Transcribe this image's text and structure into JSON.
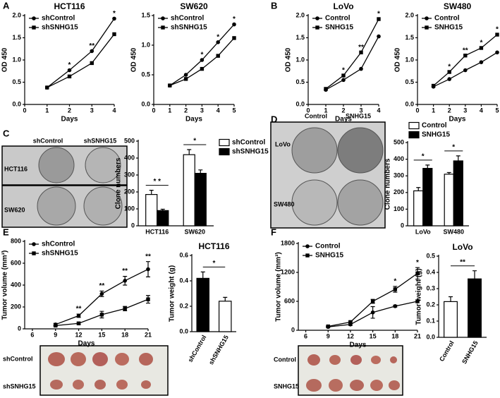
{
  "panels": [
    "A",
    "B",
    "C",
    "D",
    "E",
    "F"
  ],
  "photos": [
    {
      "columns": [
        "shControl",
        "shSNHG15"
      ],
      "rows": [
        "HCT116",
        "SW620"
      ]
    },
    {
      "columns": [
        "Control",
        "SNHG15"
      ],
      "rows": [
        "LoVo",
        "SW480"
      ]
    },
    {
      "rows": [
        "shControl",
        "shSNHG15"
      ]
    },
    {
      "rows": [
        "Control",
        "SNHG15"
      ]
    }
  ],
  "chart_data": [
    {
      "type": "line",
      "title": "HCT116",
      "xlabel": "Days",
      "ylabel": "OD 450",
      "x": [
        1,
        2,
        3,
        4
      ],
      "xlim": [
        0,
        4
      ],
      "xticks": [
        0,
        1,
        2,
        3,
        4
      ],
      "ylim": [
        0,
        2
      ],
      "yticks": [
        {
          "value": 0,
          "label": "0.0"
        },
        0.5,
        {
          "value": 1,
          "label": "1.0"
        },
        1.5,
        {
          "value": 2,
          "label": "2.0"
        }
      ],
      "legend": "upper left",
      "series": [
        {
          "name": "shControl",
          "color": "#000000",
          "marker": "circle",
          "values": [
            0.38,
            0.77,
            1.2,
            1.93
          ]
        },
        {
          "name": "shSNHG15",
          "color": "#000000",
          "marker": "square",
          "values": [
            0.38,
            0.63,
            0.93,
            1.58
          ]
        }
      ],
      "annotations": [
        {
          "x": 2,
          "text": "*"
        },
        {
          "x": 3,
          "text": "**"
        },
        {
          "x": 4,
          "text": "*"
        }
      ]
    },
    {
      "type": "line",
      "title": "SW620",
      "xlabel": "Days",
      "ylabel": "OD 450",
      "x": [
        1,
        2,
        3,
        4,
        5
      ],
      "xlim": [
        0,
        5
      ],
      "xticks": [
        0,
        1,
        2,
        3,
        4,
        5
      ],
      "ylim": [
        0,
        1.5
      ],
      "yticks": [
        {
          "value": 0,
          "label": "0.0"
        },
        0.5,
        {
          "value": 1,
          "label": "1.0"
        },
        1.5
      ],
      "legend": "upper left",
      "series": [
        {
          "name": "shControl",
          "color": "#000000",
          "marker": "circle",
          "values": [
            0.32,
            0.5,
            0.75,
            1.05,
            1.35
          ]
        },
        {
          "name": "shSNHG15",
          "color": "#000000",
          "marker": "square",
          "values": [
            0.32,
            0.43,
            0.6,
            0.82,
            1.12
          ]
        }
      ],
      "annotations": [
        {
          "x": 3,
          "text": "*"
        },
        {
          "x": 4,
          "text": "*"
        },
        {
          "x": 5,
          "text": "*"
        }
      ]
    },
    {
      "type": "line",
      "title": "LoVo",
      "xlabel": "Days",
      "ylabel": "OD 450",
      "x": [
        1,
        2,
        3,
        4
      ],
      "xlim": [
        0,
        4
      ],
      "xticks": [
        0,
        1,
        2,
        3,
        4
      ],
      "ylim": [
        0,
        2
      ],
      "yticks": [
        {
          "value": 0,
          "label": "0.0"
        },
        0.5,
        {
          "value": 1,
          "label": "1.0"
        },
        1.5,
        {
          "value": 2,
          "label": "2.0"
        }
      ],
      "legend": "upper left",
      "series": [
        {
          "name": "Control",
          "color": "#000000",
          "marker": "circle",
          "values": [
            0.33,
            0.55,
            0.8,
            1.53
          ]
        },
        {
          "name": "SNHG15",
          "color": "#000000",
          "marker": "square",
          "values": [
            0.35,
            0.65,
            1.17,
            1.92
          ]
        }
      ],
      "annotations": [
        {
          "x": 2,
          "text": "*"
        },
        {
          "x": 3,
          "text": "**"
        },
        {
          "x": 4,
          "text": "*"
        }
      ]
    },
    {
      "type": "line",
      "title": "SW480",
      "xlabel": "Days",
      "ylabel": "OD 450",
      "x": [
        1,
        2,
        3,
        4,
        5
      ],
      "xlim": [
        0,
        5
      ],
      "xticks": [
        0,
        1,
        2,
        3,
        4,
        5
      ],
      "ylim": [
        0,
        2
      ],
      "yticks": [
        {
          "value": 0,
          "label": "0.0"
        },
        0.5,
        {
          "value": 1,
          "label": "1.0"
        },
        1.5,
        {
          "value": 2,
          "label": "2.0"
        }
      ],
      "legend": "upper left",
      "series": [
        {
          "name": "Control",
          "color": "#000000",
          "marker": "circle",
          "values": [
            0.4,
            0.57,
            0.77,
            0.95,
            1.17
          ]
        },
        {
          "name": "SNHG15",
          "color": "#000000",
          "marker": "square",
          "values": [
            0.42,
            0.73,
            1.1,
            1.27,
            1.57
          ]
        }
      ],
      "annotations": [
        {
          "x": 2,
          "text": "*"
        },
        {
          "x": 3,
          "text": "**"
        },
        {
          "x": 4,
          "text": "*"
        },
        {
          "x": 5,
          "text": "*"
        }
      ]
    },
    {
      "type": "bar",
      "ylabel": "Clone numbers",
      "categories": [
        "HCT116",
        "SW620"
      ],
      "ylim": [
        0,
        500
      ],
      "yticks": [
        0,
        100,
        200,
        300,
        400,
        500
      ],
      "legend": "right",
      "series": [
        {
          "name": "shControl",
          "color": "#ffffff",
          "values": [
            185,
            420
          ],
          "errors": [
            25,
            30
          ]
        },
        {
          "name": "shSNHG15",
          "color": "#000000",
          "values": [
            90,
            310
          ],
          "errors": [
            8,
            20
          ]
        }
      ],
      "annotations": [
        {
          "category": "HCT116",
          "text": "* *"
        },
        {
          "category": "SW620",
          "text": "*"
        }
      ]
    },
    {
      "type": "bar",
      "ylabel": "Clone numbers",
      "categories": [
        "LoVo",
        "SW480"
      ],
      "ylim": [
        0,
        500
      ],
      "yticks": [
        0,
        100,
        200,
        300,
        400,
        500
      ],
      "legend": "top",
      "series": [
        {
          "name": "Control",
          "color": "#ffffff",
          "values": [
            210,
            310
          ],
          "errors": [
            20,
            10
          ]
        },
        {
          "name": "SNHG15",
          "color": "#000000",
          "values": [
            345,
            390
          ],
          "errors": [
            20,
            30
          ]
        }
      ],
      "annotations": [
        {
          "category": "LoVo",
          "text": "*"
        },
        {
          "category": "SW480",
          "text": "*"
        }
      ]
    },
    {
      "type": "line",
      "xlabel": "Days",
      "ylabel": "Tumor volume (mm³)",
      "x": [
        9,
        12,
        15,
        18,
        21
      ],
      "xlim": [
        5,
        21
      ],
      "xticks": [
        6,
        9,
        12,
        15,
        18,
        21
      ],
      "ylim": [
        0,
        800
      ],
      "yticks": [
        0,
        200,
        400,
        600,
        800
      ],
      "legend": "upper left",
      "series": [
        {
          "name": "shControl",
          "color": "#000000",
          "marker": "circle",
          "values": [
            40,
            120,
            320,
            440,
            545
          ],
          "errors": [
            10,
            15,
            25,
            40,
            70
          ]
        },
        {
          "name": "shSNHG15",
          "color": "#000000",
          "marker": "square",
          "values": [
            30,
            50,
            130,
            185,
            270
          ],
          "errors": [
            5,
            10,
            30,
            20,
            35
          ]
        }
      ],
      "annotations": [
        {
          "x": 12,
          "text": "**"
        },
        {
          "x": 15,
          "text": "**"
        },
        {
          "x": 18,
          "text": "**"
        },
        {
          "x": 21,
          "text": "**"
        }
      ]
    },
    {
      "type": "bar",
      "title": "HCT116",
      "ylabel": "Tumor weight (g)",
      "categories": [
        "shControl",
        "shSNHG15"
      ],
      "values": [
        0.42,
        0.24
      ],
      "errors": [
        0.05,
        0.03
      ],
      "colors": [
        "#000000",
        "#ffffff"
      ],
      "ylim": [
        0,
        0.6
      ],
      "yticks": [
        {
          "value": 0,
          "label": "0.0"
        },
        0.2,
        0.4,
        0.6
      ],
      "rotated_labels": true,
      "annotations": [
        {
          "text": "*"
        }
      ]
    },
    {
      "type": "line",
      "xlabel": "Days",
      "ylabel": "Tumor volume (mm³)",
      "x": [
        9,
        12,
        15,
        18,
        21
      ],
      "xlim": [
        5,
        21
      ],
      "xticks": [
        6,
        9,
        12,
        15,
        18,
        21
      ],
      "ylim": [
        0,
        1800
      ],
      "yticks": [
        0,
        600,
        1200,
        1800
      ],
      "legend": "upper left",
      "series": [
        {
          "name": "Control",
          "color": "#000000",
          "marker": "circle",
          "values": [
            70,
            120,
            370,
            500,
            600
          ],
          "errors": [
            10,
            20,
            120,
            20,
            30
          ]
        },
        {
          "name": "SNHG15",
          "color": "#000000",
          "marker": "square",
          "values": [
            80,
            170,
            600,
            850,
            1180
          ],
          "errors": [
            10,
            20,
            40,
            60,
            120
          ]
        }
      ],
      "annotations": [
        {
          "x": 18,
          "text": "*"
        },
        {
          "x": 21,
          "text": "*"
        }
      ]
    },
    {
      "type": "bar",
      "title": "LoVo",
      "ylabel": "Tumor weight (g)",
      "categories": [
        "Control",
        "SNHG15"
      ],
      "values": [
        0.22,
        0.36
      ],
      "errors": [
        0.03,
        0.05
      ],
      "colors": [
        "#ffffff",
        "#000000"
      ],
      "ylim": [
        0,
        0.5
      ],
      "yticks": [
        {
          "value": 0,
          "label": "0.0"
        },
        0.1,
        0.2,
        0.3,
        0.4,
        0.5
      ],
      "rotated_labels": true,
      "annotations": [
        {
          "text": "**"
        }
      ]
    }
  ]
}
